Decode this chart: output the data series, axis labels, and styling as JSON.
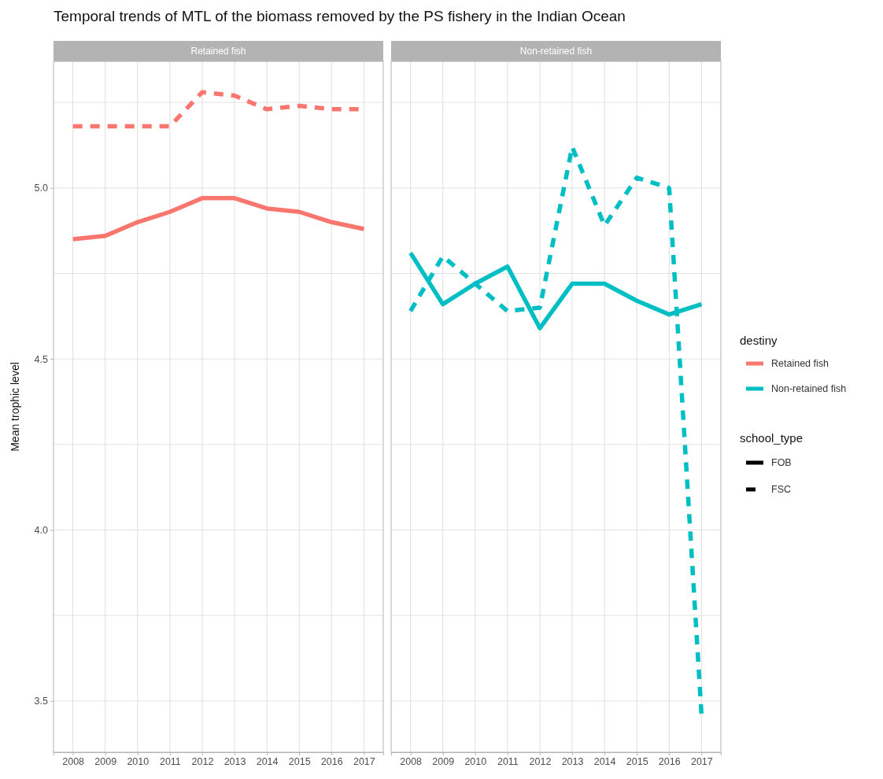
{
  "chart_data": [
    {
      "type": "line",
      "title": "Temporal trends of MTL of the biomass removed  by the PS fishery in the Indian Ocean",
      "subtitle": "Retained fish",
      "ylabel": "Mean trophic level",
      "x": [
        2008,
        2009,
        2010,
        2011,
        2012,
        2013,
        2014,
        2015,
        2016,
        2017
      ],
      "xlim": [
        2007.4,
        2017.6
      ],
      "xticks": [
        2008,
        2009,
        2010,
        2011,
        2012,
        2013,
        2014,
        2015,
        2016,
        2017
      ],
      "ylim": [
        3.35,
        5.37
      ],
      "yticks": [
        {
          "value": 3.5,
          "label": "3.5"
        },
        {
          "value": 3.75,
          "label": null
        },
        {
          "value": 4,
          "label": "4.0"
        },
        {
          "value": 4.25,
          "label": null
        },
        {
          "value": 4.5,
          "label": "4.5"
        },
        {
          "value": 4.75,
          "label": null
        },
        {
          "value": 5,
          "label": "5.0"
        },
        {
          "value": 5.25,
          "label": null
        }
      ],
      "grid": true,
      "legend": "right",
      "legend_title": "destiny",
      "series": [
        {
          "name": "Retained fish",
          "color": "#f8766d",
          "line_style": "solid",
          "values": [
            4.85,
            4.86,
            4.9,
            4.93,
            4.97,
            4.97,
            4.94,
            4.93,
            4.9,
            4.88
          ]
        },
        {
          "color": "#f8766d",
          "line_style": "dashed",
          "values": [
            5.18,
            5.18,
            5.18,
            5.18,
            5.28,
            5.27,
            5.23,
            5.24,
            5.23,
            5.23
          ]
        }
      ]
    },
    {
      "type": "line",
      "subtitle": "Non-retained fish",
      "x": [
        2008,
        2009,
        2010,
        2011,
        2012,
        2013,
        2014,
        2015,
        2016,
        2017
      ],
      "xlim": [
        2007.4,
        2017.6
      ],
      "xticks": [
        2008,
        2009,
        2010,
        2011,
        2012,
        2013,
        2014,
        2015,
        2016,
        2017
      ],
      "ylim": [
        3.35,
        5.37
      ],
      "yticks": [
        {
          "value": 3.5,
          "label": null
        },
        {
          "value": 3.75,
          "label": null
        },
        {
          "value": 4,
          "label": null
        },
        {
          "value": 4.25,
          "label": null
        },
        {
          "value": 4.5,
          "label": null
        },
        {
          "value": 4.75,
          "label": null
        },
        {
          "value": 5,
          "label": null
        },
        {
          "value": 5.25,
          "label": null
        }
      ],
      "grid": true,
      "tick_labels": "x",
      "legend": "right",
      "annotations": [
        "school_type",
        "FOB",
        "FSC"
      ],
      "series": [
        {
          "name": "Non-retained fish",
          "color": "#00bfc4",
          "line_style": "solid",
          "values": [
            4.81,
            4.66,
            4.72,
            4.77,
            4.59,
            4.72,
            4.72,
            4.67,
            4.63,
            4.66
          ]
        },
        {
          "color": "#00bfc4",
          "line_style": "dashed",
          "values": [
            4.64,
            4.8,
            4.72,
            4.64,
            4.65,
            5.12,
            4.89,
            5.03,
            5.0,
            3.46
          ]
        }
      ]
    }
  ]
}
